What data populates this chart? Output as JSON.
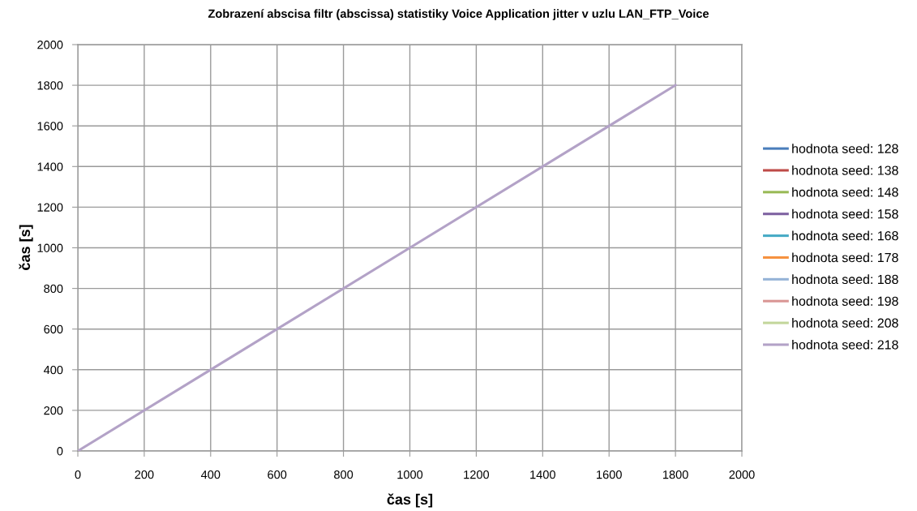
{
  "chart_data": {
    "type": "line",
    "title": "Zobrazení abscisa filtr (abscissa) statistiky Voice Application jitter v uzlu LAN_FTP_Voice",
    "xlabel": "čas [s]",
    "ylabel": "čas [s]",
    "x": [
      0,
      1800
    ],
    "series": [
      {
        "name": "hodnota seed: 128",
        "color": "#4a7ebb",
        "values": [
          null,
          null
        ]
      },
      {
        "name": "hodnota seed: 138",
        "color": "#be4b48",
        "values": [
          null,
          null
        ]
      },
      {
        "name": "hodnota seed: 148",
        "color": "#98b954",
        "values": [
          null,
          null
        ]
      },
      {
        "name": "hodnota seed: 158",
        "color": "#7d60a0",
        "values": [
          null,
          null
        ]
      },
      {
        "name": "hodnota seed: 168",
        "color": "#46aac5",
        "values": [
          null,
          null
        ]
      },
      {
        "name": "hodnota seed: 178",
        "color": "#f69240",
        "values": [
          null,
          null
        ]
      },
      {
        "name": "hodnota seed: 188",
        "color": "#95b3d7",
        "values": [
          null,
          null
        ]
      },
      {
        "name": "hodnota seed: 198",
        "color": "#d99694",
        "values": [
          null,
          null
        ]
      },
      {
        "name": "hodnota seed: 208",
        "color": "#c3d69b",
        "values": [
          null,
          null
        ]
      },
      {
        "name": "hodnota seed: 218",
        "color": "#b3a2c7",
        "values": [
          0,
          1800
        ]
      }
    ],
    "xlim": [
      0,
      2000
    ],
    "xticks": [
      0,
      200,
      400,
      600,
      800,
      1000,
      1200,
      1400,
      1600,
      1800,
      2000
    ],
    "ylim": [
      0,
      2000
    ],
    "yticks": [
      0,
      200,
      400,
      600,
      800,
      1000,
      1200,
      1400,
      1600,
      1800,
      2000
    ],
    "grid": true,
    "legend": "right",
    "line_style": "solid"
  }
}
